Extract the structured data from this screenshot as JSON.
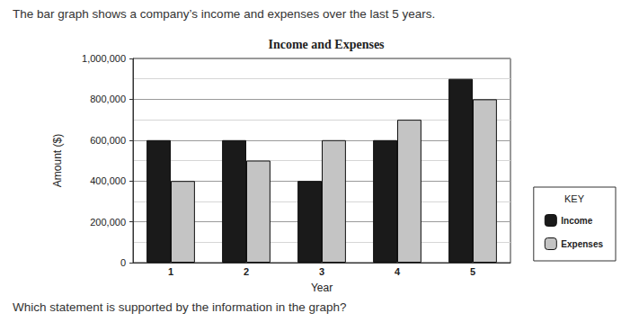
{
  "intro": "The bar graph shows a company’s income and expenses over the last 5 years.",
  "question": "Which statement is supported by the information in the graph?",
  "chart_data": {
    "type": "bar",
    "title": "Income and Expenses",
    "x_label": "Year",
    "y_label": "Amount ($)",
    "categories": [
      "1",
      "2",
      "3",
      "4",
      "5"
    ],
    "series": [
      {
        "name": "Income",
        "color": "#1a1a1a",
        "values": [
          600000,
          600000,
          400000,
          600000,
          900000
        ]
      },
      {
        "name": "Expenses",
        "color": "#c4c4c4",
        "values": [
          400000,
          500000,
          600000,
          700000,
          800000
        ]
      }
    ],
    "ylim": [
      0,
      1000000
    ],
    "yticks": [
      0,
      {
        "value": 200000,
        "label": "200,000"
      },
      {
        "value": 400000,
        "label": "400,000"
      },
      {
        "value": 600000,
        "label": "600,000"
      },
      {
        "value": 800000,
        "label": "800,000"
      },
      {
        "value": 1000000,
        "label": "1,000,000"
      }
    ],
    "grid": true,
    "legend": "right",
    "legend_title": "KEY"
  }
}
